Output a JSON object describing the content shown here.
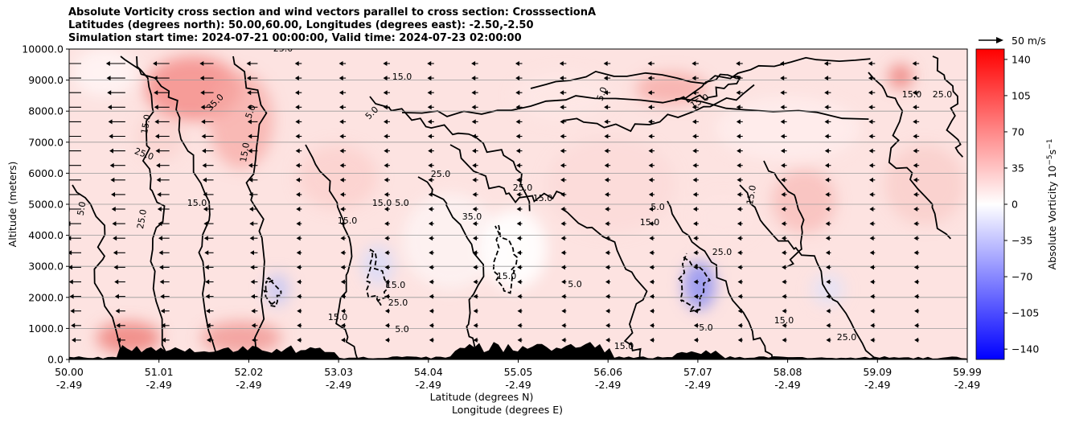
{
  "title": {
    "line1": "Absolute Vorticity cross section and wind vectors parallel to cross section: CrosssectionA",
    "line2": "Latitudes (degrees north): 50.00,60.00, Longitudes (degrees east): -2.50,-2.50",
    "line3": "Simulation start time: 2024-07-21 00:00:00, Valid time: 2024-07-23 02:00:00"
  },
  "chart_data": {
    "type": "heatmap",
    "ylabel": "Altitude (meters)",
    "xlabel_lat": "Latitude (degrees N)",
    "xlabel_lon": "Longitude (degrees E)",
    "ylim": [
      0,
      10000
    ],
    "xlim": [
      50.0,
      59.99
    ],
    "y_ticks": [
      "0.0",
      "1000.0",
      "2000.0",
      "3000.0",
      "4000.0",
      "5000.0",
      "6000.0",
      "7000.0",
      "8000.0",
      "9000.0",
      "10000.0"
    ],
    "x_ticks": [
      {
        "lat": "50.00",
        "lon": "-2.49"
      },
      {
        "lat": "51.01",
        "lon": "-2.49"
      },
      {
        "lat": "52.02",
        "lon": "-2.49"
      },
      {
        "lat": "53.03",
        "lon": "-2.49"
      },
      {
        "lat": "54.04",
        "lon": "-2.49"
      },
      {
        "lat": "55.05",
        "lon": "-2.49"
      },
      {
        "lat": "56.06",
        "lon": "-2.49"
      },
      {
        "lat": "57.07",
        "lon": "-2.49"
      },
      {
        "lat": "58.08",
        "lon": "-2.49"
      },
      {
        "lat": "59.09",
        "lon": "-2.49"
      },
      {
        "lat": "59.99",
        "lon": "-2.49"
      }
    ],
    "grid": "horizontal",
    "colorbar": {
      "label": "Absolute Vorticity 10",
      "label_exp1": "−5",
      "label_mid": "s",
      "label_exp2": "−1",
      "range": [
        -150,
        150
      ],
      "ticks": [
        "140",
        "105",
        "70",
        "35",
        "0",
        "−35",
        "−70",
        "−105",
        "−140"
      ],
      "tick_values": [
        140,
        105,
        70,
        35,
        0,
        -35,
        -70,
        -105,
        -140
      ],
      "colors": [
        "#0000ff",
        "#ffffff",
        "#ff0000"
      ]
    },
    "quiver_key": {
      "label": "50 m/s"
    },
    "contour_labels": [
      "25.0",
      "15.0",
      "35.0",
      "5.0",
      "15.0",
      "25.0",
      "15.0",
      "5.0",
      "25.0",
      "15.0",
      "5.0",
      "15.0",
      "25.0",
      "5.0",
      "15.0",
      "35.0",
      "25.0",
      "15.0",
      "5.0",
      "15.0",
      "25.0",
      "15.0",
      "5.0",
      "15.0",
      "25.0",
      "15.0",
      "5.0",
      "15.0",
      "25.0",
      "15.0",
      "5.0",
      "15.0",
      "25.0",
      "15.0",
      "5.0",
      "15.0"
    ]
  }
}
